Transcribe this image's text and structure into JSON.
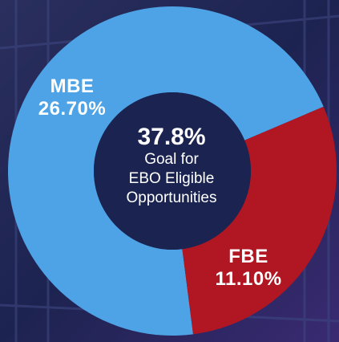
{
  "colors": {
    "mbe": "#4da3e6",
    "fbe": "#b01722",
    "center": "#1b2450",
    "background": "#1a2046"
  },
  "chart_data": {
    "type": "pie",
    "variant": "donut",
    "title": "",
    "series": [
      {
        "name": "MBE",
        "value": 26.7,
        "label": "26.70%"
      },
      {
        "name": "FBE",
        "value": 11.1,
        "label": "11.10%"
      }
    ],
    "center": {
      "value": "37.8%",
      "text_lines": [
        "Goal for",
        "EBO Eligible",
        "Opportunities"
      ]
    }
  }
}
